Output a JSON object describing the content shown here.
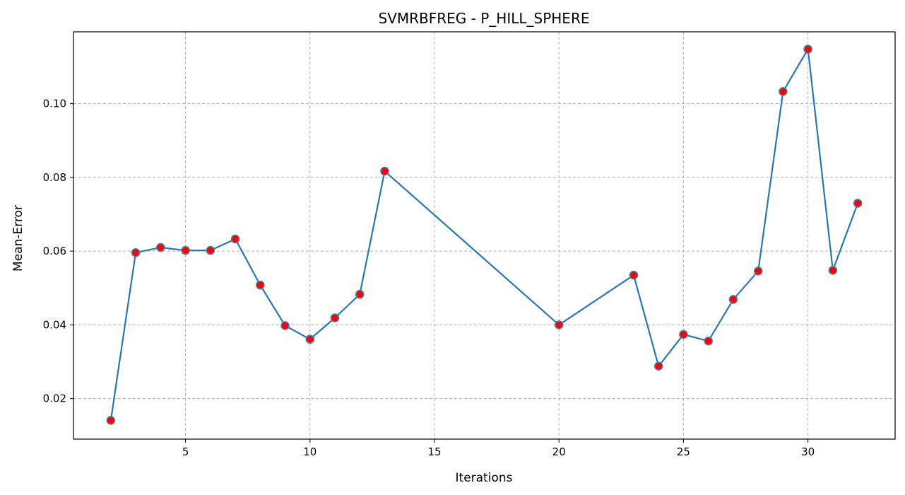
{
  "chart_data": {
    "type": "line",
    "title": "SVMRBFREG - P_HILL_SPHERE",
    "xlabel": "Iterations",
    "ylabel": "Mean-Error",
    "xlim": [
      0.5,
      33.5
    ],
    "ylim": [
      0.009,
      0.1195
    ],
    "xticks": [
      5,
      10,
      15,
      20,
      25,
      30
    ],
    "yticks": [
      0.02,
      0.04,
      0.06,
      0.08,
      0.1
    ],
    "ytick_labels": [
      "0.02",
      "0.04",
      "0.06",
      "0.08",
      "0.10"
    ],
    "grid": true,
    "line_color": "#2878b0",
    "marker_fill": "#ff0000",
    "marker_edge": "#4a7fb0",
    "series": [
      {
        "x": [
          2,
          3,
          4,
          5,
          6,
          7,
          8,
          9,
          10,
          11,
          12,
          13,
          20,
          23,
          24,
          25,
          26,
          27,
          28,
          29,
          30,
          31,
          32
        ],
        "y": [
          0.0141,
          0.0596,
          0.061,
          0.0602,
          0.0602,
          0.0633,
          0.0508,
          0.0398,
          0.0361,
          0.0419,
          0.0483,
          0.0817,
          0.04,
          0.0535,
          0.0288,
          0.0374,
          0.0356,
          0.0469,
          0.0546,
          0.1033,
          0.1148,
          0.0548,
          0.073
        ]
      }
    ]
  }
}
